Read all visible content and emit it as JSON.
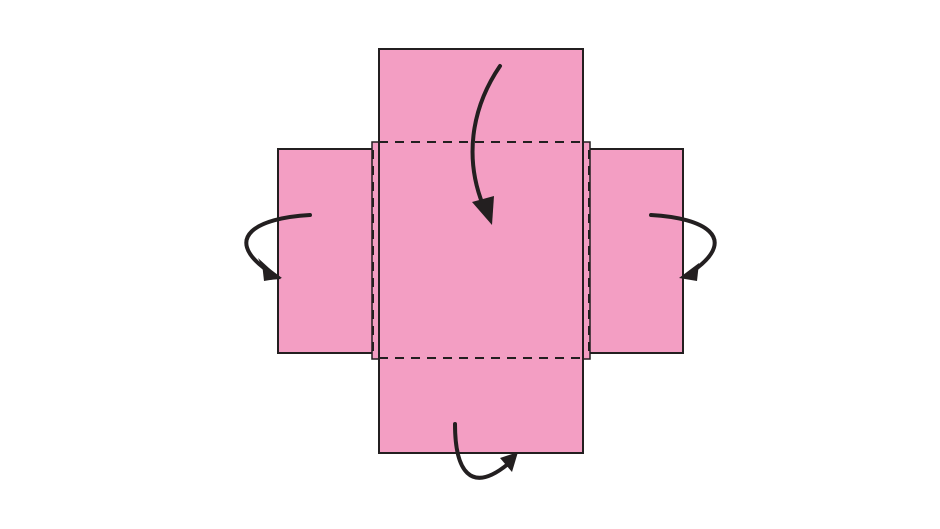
{
  "diagram": {
    "colors": {
      "background": "#ffffff",
      "paper": "#f39ec3",
      "outline": "#231f20",
      "arrow": "#231f20"
    },
    "panels": [
      "left-flap",
      "top-flap",
      "center-panel",
      "bottom-flap",
      "right-flap"
    ],
    "fold_lines": [
      "top-fold-line",
      "bottom-fold-line",
      "left-fold-line",
      "right-fold-line"
    ],
    "arrows": [
      "top-fold-arrow",
      "bottom-fold-arrow",
      "left-fold-arrow",
      "right-fold-arrow"
    ]
  }
}
